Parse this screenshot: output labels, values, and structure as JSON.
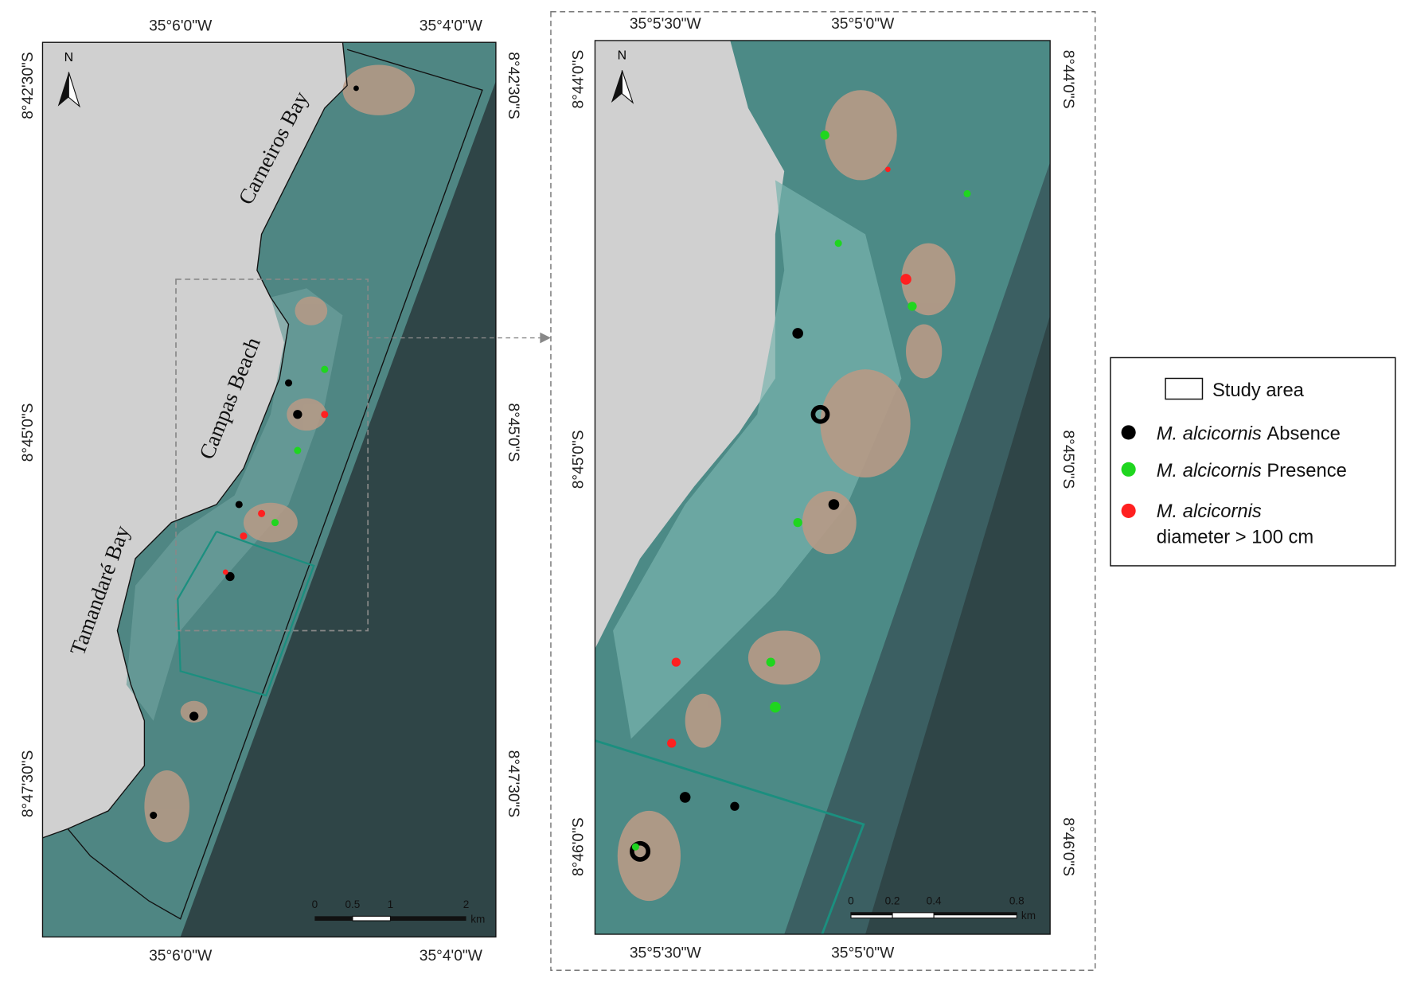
{
  "left_map": {
    "top_labels": [
      "35°6'0\"W",
      "35°4'0\"W"
    ],
    "bottom_labels": [
      "35°6'0\"W",
      "35°4'0\"W"
    ],
    "left_labels": [
      "8°42'30\"S",
      "8°45'0\"S",
      "8°47'30\"S"
    ],
    "right_labels": [
      "8°42'30\"S",
      "8°45'0\"S",
      "8°47'30\"S"
    ],
    "places": [
      "Carneiros Bay",
      "Campas Beach",
      "Tamandaré Bay"
    ],
    "north": "N",
    "scale": {
      "ticks": [
        "0",
        "0.5",
        "1",
        "2"
      ],
      "unit": "km"
    }
  },
  "right_map": {
    "top_labels": [
      "35°5'30\"W",
      "35°5'0\"W"
    ],
    "bottom_labels": [
      "35°5'30\"W",
      "35°5'0\"W"
    ],
    "left_labels": [
      "8°44'0\"S",
      "8°45'0\"S",
      "8°46'0\"S"
    ],
    "right_labels": [
      "8°44'0\"S",
      "8°45'0\"S",
      "8°46'0\"S"
    ],
    "north": "N",
    "scale": {
      "ticks": [
        "0",
        "0.2",
        "0.4",
        "0.8"
      ],
      "unit": "km"
    }
  },
  "legend": {
    "study_area": "Study area",
    "species": "M. alcicornis",
    "absence": "Absence",
    "presence": "Presence",
    "diameter": "diameter > 100 cm"
  }
}
